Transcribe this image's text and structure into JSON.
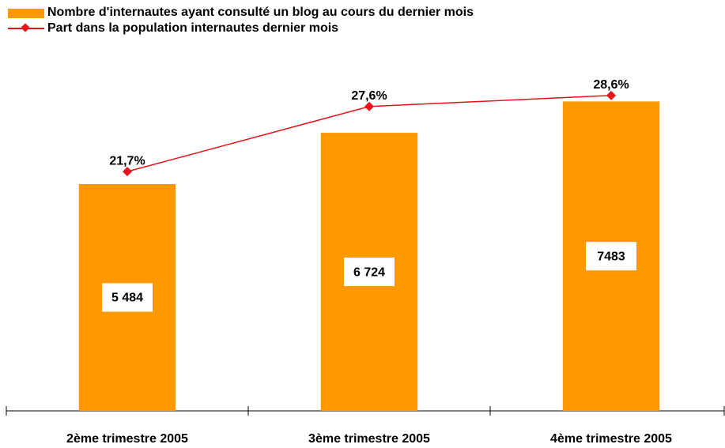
{
  "chart_data": {
    "type": "bar",
    "categories": [
      "2ème trimestre 2005",
      "3ème trimestre 2005",
      "4ème trimestre 2005"
    ],
    "series": [
      {
        "name": "Nombre d'internautes ayant consulté un blog au cours du dernier mois",
        "type": "bar",
        "color": "#ff9900",
        "values": [
          5484,
          6724,
          7483
        ],
        "value_labels": [
          "5 484",
          "6 724",
          "7483"
        ]
      },
      {
        "name": "Part dans la population internautes dernier mois",
        "type": "line",
        "axis": "y2",
        "color": "#e8141b",
        "values": [
          21.7,
          27.6,
          28.6
        ],
        "value_labels": [
          "21,7%",
          "27,6%",
          "28,6%"
        ]
      }
    ],
    "ylim": [
      0,
      8000
    ],
    "y2lim": [
      0,
      30
    ],
    "legend": "top-left"
  }
}
